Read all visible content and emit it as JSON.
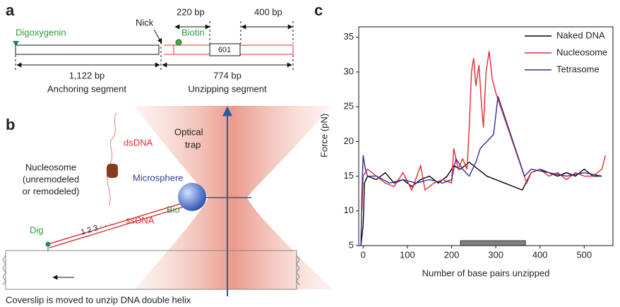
{
  "panels": {
    "a": {
      "label": "a",
      "digoxygenin": "Digoxygenin",
      "nick": "Nick",
      "biotin": "Biotin",
      "span_220": "220 bp",
      "span_400": "400 bp",
      "box_601": "601",
      "anchor_len": "1,122 bp",
      "anchor_name": "Anchoring segment",
      "unzip_len": "774 bp",
      "unzip_name": "Unzipping segment"
    },
    "b": {
      "label": "b",
      "dsdna": "dsDNA",
      "optical_trap": [
        "Optical",
        "trap"
      ],
      "nucleosome": [
        "Nucleosome",
        "(unremodeled",
        "or remodeled)"
      ],
      "microsphere": "Microsphere",
      "bio": "Bio",
      "dig": "Dig",
      "numbers": "1 2 3 · · ·",
      "ssdna": "ssDNA",
      "caption": "Coverslip is moved to unzip DNA double helix"
    },
    "c": {
      "label": "c"
    }
  },
  "chart_data": {
    "type": "line",
    "x_label": "Number of base pairs unzipped",
    "y_label": "Force (pN)",
    "xlim": [
      -10,
      565
    ],
    "ylim": [
      5,
      36.5
    ],
    "xticks": [
      0,
      100,
      200,
      300,
      400,
      500
    ],
    "yticks": [
      5,
      10,
      15,
      20,
      25,
      30,
      35
    ],
    "highlight_range": [
      220,
      367
    ],
    "highlight_color": "#808080",
    "legend": "top-right",
    "series": [
      {
        "name": "Naked DNA",
        "color": "#000000",
        "x": [
          -5,
          0,
          3,
          10,
          30,
          50,
          70,
          90,
          110,
          130,
          150,
          170,
          190,
          205,
          220,
          240,
          260,
          280,
          300,
          320,
          340,
          360,
          380,
          400,
          420,
          440,
          460,
          480,
          500,
          520,
          540
        ],
        "values": [
          5,
          8,
          14,
          15,
          14.5,
          15.5,
          14,
          14.5,
          13.5,
          14.5,
          15,
          14,
          15,
          16.5,
          16,
          17,
          16,
          15,
          14.5,
          14,
          13.5,
          13,
          15.5,
          16,
          15.5,
          15,
          15.5,
          15,
          16,
          15,
          15
        ]
      },
      {
        "name": "Nucleosome",
        "color": "#e8282e",
        "x": [
          -3,
          0,
          10,
          30,
          50,
          70,
          90,
          110,
          130,
          140,
          160,
          180,
          200,
          205,
          215,
          225,
          235,
          240,
          245,
          250,
          255,
          262,
          268,
          272,
          278,
          285,
          292,
          300,
          370,
          380,
          400,
          420,
          440,
          460,
          480,
          500,
          520,
          540,
          548
        ],
        "values": [
          10,
          15,
          16,
          15,
          14,
          13.5,
          15.5,
          13,
          16.5,
          13,
          14,
          14.5,
          14,
          19,
          16,
          17.5,
          16,
          22,
          30,
          32,
          28,
          31,
          25,
          22,
          30,
          33,
          29,
          27,
          14,
          15.5,
          16,
          15,
          15.5,
          14.5,
          15.5,
          15,
          15,
          16,
          18
        ]
      },
      {
        "name": "Tetrasome",
        "color": "#2e2e8e",
        "x": [
          -5,
          -3,
          0,
          5,
          10,
          30,
          60,
          90,
          120,
          150,
          180,
          200,
          210,
          225,
          240,
          255,
          265,
          280,
          295,
          305,
          365,
          380,
          420,
          460,
          500,
          540
        ],
        "values": [
          5,
          12,
          18,
          16,
          15,
          15,
          14,
          14.5,
          14,
          14.5,
          14,
          14.5,
          17.5,
          16,
          15,
          17,
          19,
          20,
          21,
          26.5,
          15,
          16,
          15.5,
          15,
          15.5,
          15
        ]
      }
    ]
  }
}
